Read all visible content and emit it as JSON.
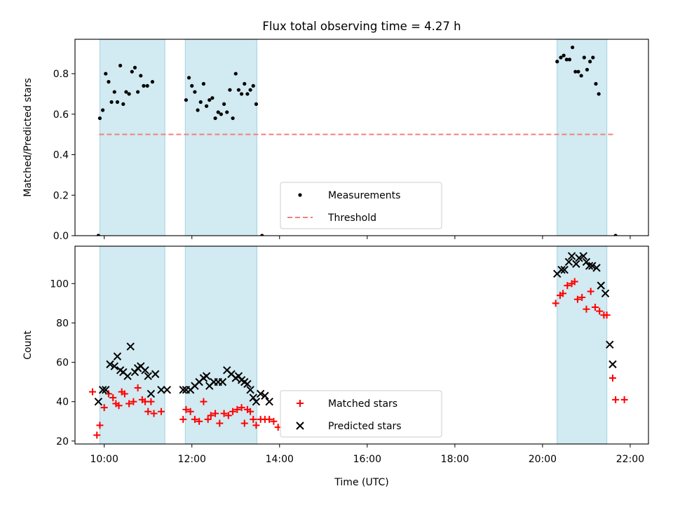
{
  "colors": {
    "band": "#add8e6",
    "threshold": "#f08080",
    "measurement": "#000000",
    "matched": "#ff0000",
    "predicted": "#000000"
  },
  "chart_data": [
    {
      "type": "scatter",
      "title": "Flux total observing time = 4.27 h",
      "xlabel": "",
      "ylabel": "Matched/Predicted stars",
      "xlim": [
        "09:20",
        "22:25"
      ],
      "ylim": [
        0,
        0.97
      ],
      "yticks": [
        {
          "v": 0.0,
          "label": "0.0"
        },
        {
          "v": 0.2,
          "label": "0.2"
        },
        {
          "v": 0.4,
          "label": "0.4"
        },
        {
          "v": 0.6,
          "label": "0.6"
        },
        {
          "v": 0.8,
          "label": "0.8"
        }
      ],
      "xticks": [
        "10:00",
        "12:00",
        "14:00",
        "16:00",
        "18:00",
        "20:00",
        "22:00"
      ],
      "shaded_intervals": [
        [
          "09:54",
          "11:23"
        ],
        [
          "11:51",
          "13:29"
        ],
        [
          "20:20",
          "21:28"
        ]
      ],
      "threshold": {
        "value": 0.5,
        "x": [
          "09:53",
          "21:37"
        ]
      },
      "legend": {
        "position": "lower-center",
        "entries": [
          "Measurements",
          "Threshold"
        ]
      },
      "series": [
        {
          "name": "Measurements",
          "points": [
            [
              "09:52",
              0.0
            ],
            [
              "09:54",
              0.58
            ],
            [
              "09:58",
              0.62
            ],
            [
              "10:02",
              0.8
            ],
            [
              "10:06",
              0.76
            ],
            [
              "10:10",
              0.66
            ],
            [
              "10:14",
              0.71
            ],
            [
              "10:18",
              0.66
            ],
            [
              "10:22",
              0.84
            ],
            [
              "10:26",
              0.65
            ],
            [
              "10:30",
              0.71
            ],
            [
              "10:34",
              0.7
            ],
            [
              "10:38",
              0.81
            ],
            [
              "10:42",
              0.83
            ],
            [
              "10:46",
              0.71
            ],
            [
              "10:50",
              0.79
            ],
            [
              "10:54",
              0.74
            ],
            [
              "10:59",
              0.74
            ],
            [
              "11:06",
              0.76
            ],
            [
              "11:52",
              0.67
            ],
            [
              "11:56",
              0.78
            ],
            [
              "12:00",
              0.74
            ],
            [
              "12:04",
              0.71
            ],
            [
              "12:08",
              0.62
            ],
            [
              "12:12",
              0.66
            ],
            [
              "12:16",
              0.75
            ],
            [
              "12:20",
              0.64
            ],
            [
              "12:24",
              0.67
            ],
            [
              "12:28",
              0.68
            ],
            [
              "12:32",
              0.58
            ],
            [
              "12:36",
              0.61
            ],
            [
              "12:40",
              0.6
            ],
            [
              "12:44",
              0.65
            ],
            [
              "12:48",
              0.61
            ],
            [
              "12:52",
              0.72
            ],
            [
              "12:56",
              0.58
            ],
            [
              "13:00",
              0.8
            ],
            [
              "13:04",
              0.72
            ],
            [
              "13:08",
              0.7
            ],
            [
              "13:12",
              0.75
            ],
            [
              "13:16",
              0.7
            ],
            [
              "13:20",
              0.72
            ],
            [
              "13:24",
              0.74
            ],
            [
              "13:28",
              0.65
            ],
            [
              "13:36",
              0.0
            ],
            [
              "20:20",
              0.86
            ],
            [
              "20:25",
              0.88
            ],
            [
              "20:29",
              0.89
            ],
            [
              "20:33",
              0.87
            ],
            [
              "20:37",
              0.87
            ],
            [
              "20:41",
              0.93
            ],
            [
              "20:45",
              0.81
            ],
            [
              "20:49",
              0.81
            ],
            [
              "20:53",
              0.79
            ],
            [
              "20:57",
              0.88
            ],
            [
              "21:01",
              0.82
            ],
            [
              "21:05",
              0.86
            ],
            [
              "21:09",
              0.88
            ],
            [
              "21:13",
              0.75
            ],
            [
              "21:17",
              0.7
            ],
            [
              "21:40",
              0.0
            ]
          ]
        }
      ]
    },
    {
      "type": "scatter",
      "title": "",
      "xlabel": "Time (UTC)",
      "ylabel": "Count",
      "xlim": [
        "09:20",
        "22:25"
      ],
      "ylim": [
        18.5,
        119
      ],
      "yticks": [
        {
          "v": 20,
          "label": "20"
        },
        {
          "v": 40,
          "label": "40"
        },
        {
          "v": 60,
          "label": "60"
        },
        {
          "v": 80,
          "label": "80"
        },
        {
          "v": 100,
          "label": "100"
        }
      ],
      "xticks": [
        "10:00",
        "12:00",
        "14:00",
        "16:00",
        "18:00",
        "20:00",
        "22:00"
      ],
      "shaded_intervals": [
        [
          "09:54",
          "11:23"
        ],
        [
          "11:51",
          "13:29"
        ],
        [
          "20:20",
          "21:28"
        ]
      ],
      "legend": {
        "position": "lower-center",
        "entries": [
          "Matched stars",
          "Predicted stars"
        ]
      },
      "series": [
        {
          "name": "Matched stars",
          "points": [
            [
              "09:44",
              45
            ],
            [
              "09:50",
              23
            ],
            [
              "09:54",
              28
            ],
            [
              "10:00",
              37
            ],
            [
              "10:06",
              44
            ],
            [
              "10:12",
              42
            ],
            [
              "10:16",
              39
            ],
            [
              "10:20",
              38
            ],
            [
              "10:24",
              45
            ],
            [
              "10:28",
              44
            ],
            [
              "10:34",
              39
            ],
            [
              "10:40",
              40
            ],
            [
              "10:46",
              47
            ],
            [
              "10:52",
              41
            ],
            [
              "10:56",
              40
            ],
            [
              "11:00",
              35
            ],
            [
              "11:04",
              40
            ],
            [
              "11:08",
              34
            ],
            [
              "11:18",
              35
            ],
            [
              "11:48",
              31
            ],
            [
              "11:52",
              36
            ],
            [
              "11:58",
              35
            ],
            [
              "12:04",
              31
            ],
            [
              "12:10",
              30
            ],
            [
              "12:16",
              40
            ],
            [
              "12:22",
              31
            ],
            [
              "12:26",
              33
            ],
            [
              "12:32",
              34
            ],
            [
              "12:38",
              29
            ],
            [
              "12:44",
              34
            ],
            [
              "12:50",
              33
            ],
            [
              "12:56",
              35
            ],
            [
              "13:02",
              36
            ],
            [
              "13:08",
              37
            ],
            [
              "13:12",
              29
            ],
            [
              "13:16",
              36
            ],
            [
              "13:20",
              35
            ],
            [
              "13:24",
              31
            ],
            [
              "13:28",
              28
            ],
            [
              "13:34",
              31
            ],
            [
              "13:40",
              31
            ],
            [
              "13:46",
              31
            ],
            [
              "13:52",
              30
            ],
            [
              "13:58",
              27
            ],
            [
              "20:18",
              90
            ],
            [
              "20:24",
              94
            ],
            [
              "20:28",
              95
            ],
            [
              "20:34",
              99
            ],
            [
              "20:40",
              100
            ],
            [
              "20:44",
              101
            ],
            [
              "20:48",
              92
            ],
            [
              "20:54",
              93
            ],
            [
              "21:00",
              87
            ],
            [
              "21:06",
              96
            ],
            [
              "21:12",
              88
            ],
            [
              "21:18",
              86
            ],
            [
              "21:24",
              84
            ],
            [
              "21:28",
              84
            ],
            [
              "21:36",
              52
            ],
            [
              "21:40",
              41
            ],
            [
              "21:52",
              41
            ]
          ]
        },
        {
          "name": "Predicted stars",
          "points": [
            [
              "09:52",
              40
            ],
            [
              "09:58",
              46
            ],
            [
              "10:02",
              46
            ],
            [
              "10:08",
              59
            ],
            [
              "10:14",
              58
            ],
            [
              "10:18",
              63
            ],
            [
              "10:22",
              56
            ],
            [
              "10:26",
              55
            ],
            [
              "10:32",
              53
            ],
            [
              "10:36",
              68
            ],
            [
              "10:42",
              55
            ],
            [
              "10:46",
              57
            ],
            [
              "10:50",
              58
            ],
            [
              "10:56",
              56
            ],
            [
              "11:00",
              53
            ],
            [
              "11:04",
              44
            ],
            [
              "11:10",
              54
            ],
            [
              "11:18",
              46
            ],
            [
              "11:26",
              46
            ],
            [
              "11:48",
              46
            ],
            [
              "11:52",
              46
            ],
            [
              "11:58",
              46
            ],
            [
              "12:04",
              48
            ],
            [
              "12:10",
              50
            ],
            [
              "12:16",
              52
            ],
            [
              "12:20",
              53
            ],
            [
              "12:24",
              48
            ],
            [
              "12:30",
              50
            ],
            [
              "12:36",
              50
            ],
            [
              "12:42",
              50
            ],
            [
              "12:48",
              56
            ],
            [
              "12:54",
              54
            ],
            [
              "13:00",
              52
            ],
            [
              "13:04",
              53
            ],
            [
              "13:08",
              51
            ],
            [
              "13:12",
              50
            ],
            [
              "13:16",
              49
            ],
            [
              "13:20",
              46
            ],
            [
              "13:24",
              42
            ],
            [
              "13:28",
              40
            ],
            [
              "13:34",
              44
            ],
            [
              "13:40",
              43
            ],
            [
              "13:46",
              40
            ],
            [
              "20:20",
              105
            ],
            [
              "20:26",
              107
            ],
            [
              "20:30",
              107
            ],
            [
              "20:36",
              111
            ],
            [
              "20:40",
              114
            ],
            [
              "20:46",
              110
            ],
            [
              "20:50",
              113
            ],
            [
              "20:56",
              114
            ],
            [
              "21:00",
              111
            ],
            [
              "21:04",
              109
            ],
            [
              "21:08",
              109
            ],
            [
              "21:14",
              108
            ],
            [
              "21:20",
              99
            ],
            [
              "21:26",
              95
            ],
            [
              "21:32",
              69
            ],
            [
              "21:36",
              59
            ]
          ]
        }
      ]
    }
  ]
}
